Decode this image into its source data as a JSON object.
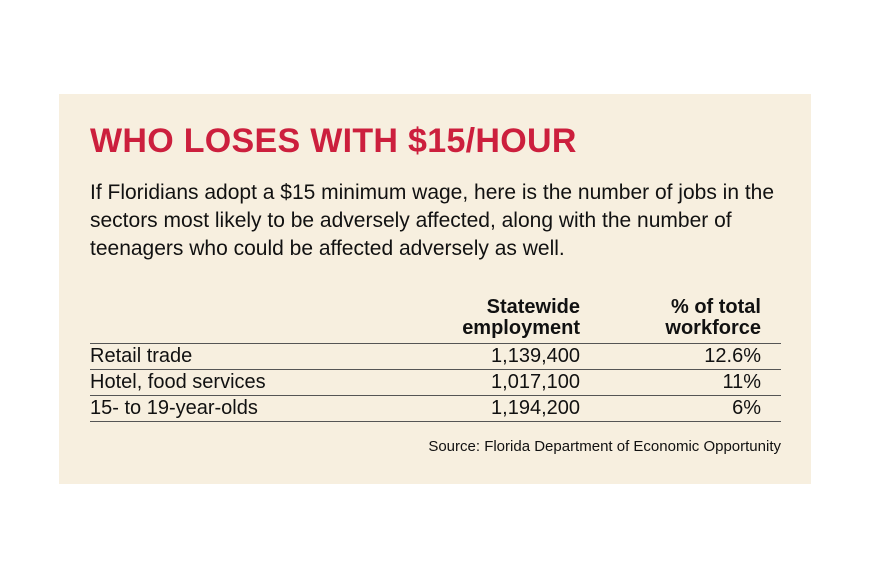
{
  "title": "WHO LOSES WITH $15/HOUR",
  "intro": "If Floridians adopt a $15 minimum wage, here is the number of jobs in the sectors most likely to be adversely affected, along with the number of teenagers who could be affected adversely as well.",
  "colors": {
    "title": "#cc1f3d",
    "background": "#f7efdf",
    "text": "#111111"
  },
  "chart_data": {
    "type": "table",
    "columns": [
      {
        "line1": "Statewide",
        "line2": "employment"
      },
      {
        "line1": "% of total",
        "line2": "workforce"
      }
    ],
    "rows": [
      {
        "label": "Retail trade",
        "employment": "1,139,400",
        "percent": "12.6%"
      },
      {
        "label": "Hotel, food services",
        "employment": "1,017,100",
        "percent": "11%"
      },
      {
        "label": "15- to 19-year-olds",
        "employment": "1,194,200",
        "percent": "6%"
      }
    ]
  },
  "source": "Source: Florida Department of Economic Opportunity"
}
